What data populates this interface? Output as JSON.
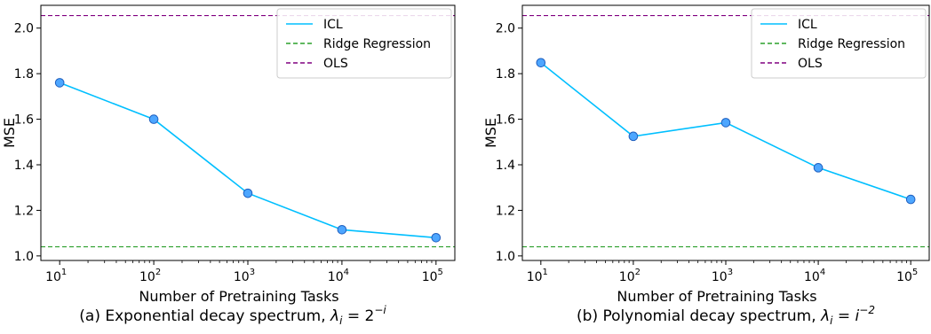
{
  "chart_data": [
    {
      "type": "line",
      "caption": {
        "text": "(a) Exponential decay spectrum, ",
        "math": "λ",
        "sub": "i",
        "eq": " = 2",
        "sup": "−i"
      },
      "xlabel": "Number of Pretraining Tasks",
      "ylabel": "MSE",
      "x_scale": "log",
      "x": [
        10,
        100,
        1000,
        10000,
        100000
      ],
      "x_tick_labels": [
        {
          "base": "10",
          "exp": "1"
        },
        {
          "base": "10",
          "exp": "2"
        },
        {
          "base": "10",
          "exp": "3"
        },
        {
          "base": "10",
          "exp": "4"
        },
        {
          "base": "10",
          "exp": "5"
        }
      ],
      "y_ticks": [
        "1.0",
        "1.2",
        "1.4",
        "1.6",
        "1.8",
        "2.0"
      ],
      "ylim": [
        0.98,
        2.1
      ],
      "grid": false,
      "legend_position": "top-right",
      "series": [
        {
          "name": "ICL",
          "style": "solid-with-markers",
          "color": "#00bfff",
          "marker_color": "#4da6ff",
          "values": [
            1.76,
            1.6,
            1.275,
            1.115,
            1.08
          ]
        },
        {
          "name": "Ridge Regression",
          "style": "dashed",
          "color": "#2ca02c",
          "constant": 1.04
        },
        {
          "name": "OLS",
          "style": "dashed",
          "color": "#800080",
          "constant": 2.055
        }
      ]
    },
    {
      "type": "line",
      "caption": {
        "text": "(b) Polynomial decay spectrum, ",
        "math": "λ",
        "sub": "i",
        "eq": " = ",
        "base2": "i",
        "sup": "−2"
      },
      "xlabel": "Number of Pretraining Tasks",
      "ylabel": "MSE",
      "x_scale": "log",
      "x": [
        10,
        100,
        1000,
        10000,
        100000
      ],
      "x_tick_labels": [
        {
          "base": "10",
          "exp": "1"
        },
        {
          "base": "10",
          "exp": "2"
        },
        {
          "base": "10",
          "exp": "3"
        },
        {
          "base": "10",
          "exp": "4"
        },
        {
          "base": "10",
          "exp": "5"
        }
      ],
      "y_ticks": [
        "1.0",
        "1.2",
        "1.4",
        "1.6",
        "1.8",
        "2.0"
      ],
      "ylim": [
        0.98,
        2.1
      ],
      "grid": false,
      "legend_position": "top-right",
      "series": [
        {
          "name": "ICL",
          "style": "solid-with-markers",
          "color": "#00bfff",
          "marker_color": "#4da6ff",
          "values": [
            1.848,
            1.525,
            1.585,
            1.387,
            1.248
          ]
        },
        {
          "name": "Ridge Regression",
          "style": "dashed",
          "color": "#2ca02c",
          "constant": 1.04
        },
        {
          "name": "OLS",
          "style": "dashed",
          "color": "#800080",
          "constant": 2.055
        }
      ]
    }
  ]
}
